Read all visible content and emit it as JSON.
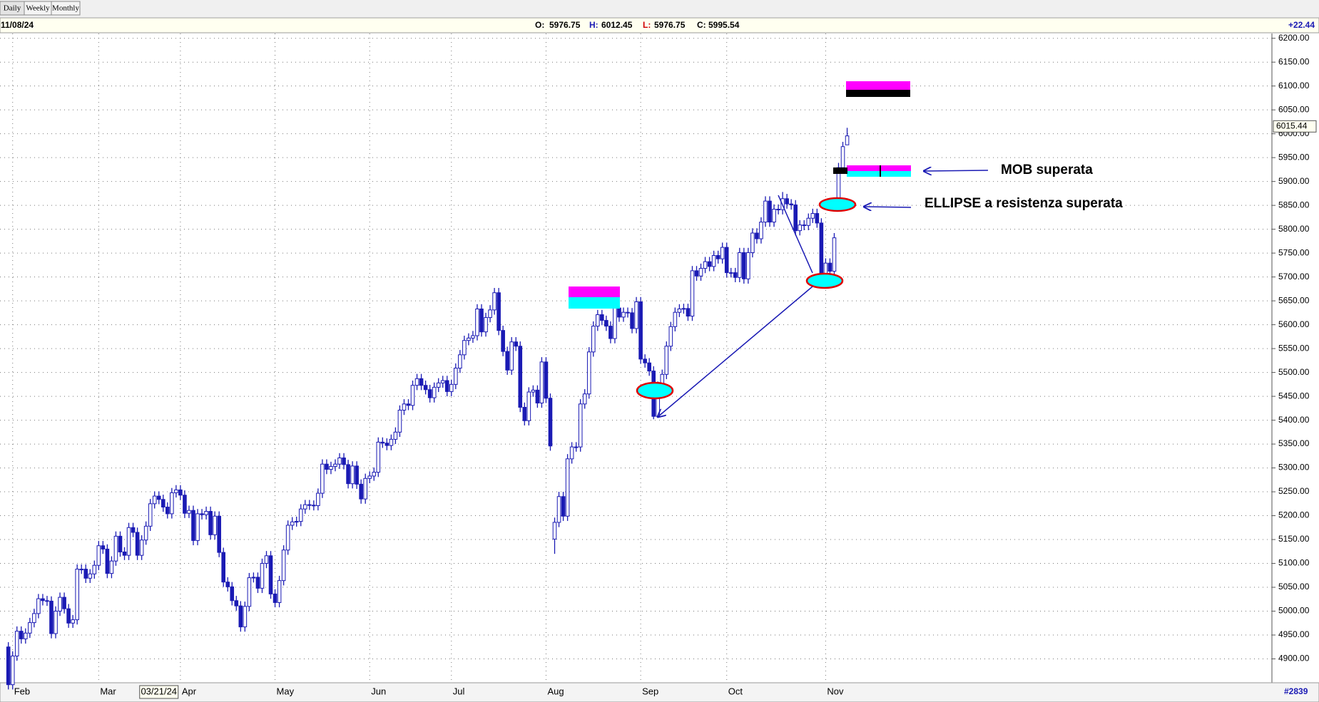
{
  "toolbar": {
    "buttons": [
      "Daily",
      "Weekly",
      "Monthly"
    ]
  },
  "header": {
    "date": "11/08/24",
    "ohlc_labels": [
      "O:",
      "H:",
      "L:",
      "C:"
    ],
    "change": "+22.44",
    "footer": "#2839"
  },
  "chart_data": {
    "type": "candlestick",
    "color": "#1a1ab4",
    "grid": true,
    "annotations": [
      "MOB superata",
      "ELLIPSE a resistenza superata"
    ],
    "cursor_price": 6015.44,
    "ylim": [
      4850,
      6210
    ],
    "yticks": [
      {
        "value": 4900,
        "label": "4900.00"
      },
      {
        "value": 4950,
        "label": "4950.00"
      },
      {
        "value": 5000,
        "label": "5000.00"
      },
      {
        "value": 5050,
        "label": "5050.00"
      },
      {
        "value": 5100,
        "label": "5100.00"
      },
      {
        "value": 5150,
        "label": "5150.00"
      },
      {
        "value": 5200,
        "label": "5200.00"
      },
      {
        "value": 5250,
        "label": "5250.00"
      },
      {
        "value": 5300,
        "label": "5300.00"
      },
      {
        "value": 5350,
        "label": "5350.00"
      },
      {
        "value": 5400,
        "label": "5400.00"
      },
      {
        "value": 5450,
        "label": "5450.00"
      },
      {
        "value": 5500,
        "label": "5500.00"
      },
      {
        "value": 5550,
        "label": "5550.00"
      },
      {
        "value": 5600,
        "label": "5600.00"
      },
      {
        "value": 5650,
        "label": "5650.00"
      },
      {
        "value": 5700,
        "label": "5700.00"
      },
      {
        "value": 5750,
        "label": "5750.00"
      },
      {
        "value": 5800,
        "label": "5800.00"
      },
      {
        "value": 5850,
        "label": "5850.00"
      },
      {
        "value": 5900,
        "label": "5900.00"
      },
      {
        "value": 5950,
        "label": "5950.00"
      },
      {
        "value": 6000,
        "label": "6000.00"
      },
      {
        "value": 6050,
        "label": "6050.00"
      },
      {
        "value": 6100,
        "label": "6100.00"
      },
      {
        "value": 6150,
        "label": "6150.00"
      },
      {
        "value": 6200,
        "label": "6200.00"
      }
    ],
    "categories": [
      null,
      "Feb",
      null,
      null,
      null,
      null,
      null,
      null,
      null,
      null,
      null,
      null,
      null,
      null,
      null,
      null,
      null,
      null,
      null,
      null,
      null,
      "Mar",
      null,
      null,
      null,
      null,
      null,
      null,
      null,
      null,
      null,
      null,
      null,
      null,
      null,
      "03/21/24",
      null,
      null,
      null,
      null,
      "Apr",
      null,
      null,
      null,
      null,
      null,
      null,
      null,
      null,
      null,
      null,
      null,
      null,
      null,
      null,
      null,
      null,
      null,
      null,
      null,
      null,
      null,
      "May",
      null,
      null,
      null,
      null,
      null,
      null,
      null,
      null,
      null,
      null,
      null,
      null,
      null,
      null,
      null,
      null,
      null,
      null,
      null,
      null,
      null,
      "Jun",
      null,
      null,
      null,
      null,
      null,
      null,
      null,
      null,
      null,
      null,
      null,
      null,
      null,
      null,
      null,
      null,
      null,
      null,
      "Jul",
      null,
      null,
      null,
      null,
      null,
      null,
      null,
      null,
      null,
      null,
      null,
      null,
      null,
      null,
      null,
      null,
      null,
      null,
      null,
      null,
      null,
      "Aug",
      null,
      null,
      null,
      null,
      null,
      null,
      null,
      null,
      null,
      null,
      null,
      null,
      null,
      null,
      null,
      null,
      null,
      null,
      null,
      null,
      null,
      "Sep",
      null,
      null,
      null,
      null,
      null,
      null,
      null,
      null,
      null,
      null,
      null,
      null,
      null,
      null,
      null,
      null,
      null,
      null,
      null,
      "Oct",
      null,
      null,
      null,
      null,
      null,
      null,
      null,
      null,
      null,
      null,
      null,
      null,
      null,
      null,
      null,
      null,
      null,
      null,
      null,
      null,
      null,
      null,
      "Nov",
      null,
      null,
      null,
      null,
      null
    ],
    "open": [
      4925,
      4846,
      4906,
      4958,
      4942,
      4954,
      4976,
      4995,
      5026,
      5022,
      5021,
      4953,
      5000,
      5029,
      5005,
      4975,
      4982,
      5088,
      5088,
      5069,
      5078,
      5096,
      5137,
      5130,
      5079,
      5105,
      5157,
      5124,
      5117,
      5175,
      5165,
      5117,
      5149,
      5178,
      5225,
      5241,
      5234,
      5218,
      5204,
      5248,
      5254,
      5243,
      5205,
      5211,
      5148,
      5204,
      5202,
      5209,
      5160,
      5199,
      5123,
      5061,
      5051,
      5022,
      5011,
      4967,
      5010,
      5070,
      5071,
      5048,
      5100,
      5116,
      5036,
      5018,
      5064,
      5128,
      5180,
      5187,
      5188,
      5214,
      5223,
      5222,
      5221,
      5247,
      5308,
      5297,
      5303,
      5308,
      5321,
      5307,
      5267,
      5304,
      5266,
      5235,
      5278,
      5283,
      5291,
      5354,
      5352,
      5347,
      5360,
      5375,
      5421,
      5434,
      5431,
      5473,
      5487,
      5473,
      5464,
      5447,
      5469,
      5478,
      5483,
      5460,
      5475,
      5509,
      5537,
      5567,
      5572,
      5577,
      5633,
      5585,
      5615,
      5631,
      5667,
      5588,
      5544,
      5505,
      5564,
      5555,
      5427,
      5399,
      5459,
      5463,
      5436,
      5522,
      5446,
      5151,
      5186,
      5240,
      5199,
      5319,
      5344,
      5344,
      5434,
      5455,
      5543,
      5597,
      5621,
      5609,
      5597,
      5571,
      5635,
      5616,
      5626,
      5625,
      5592,
      5648,
      5528,
      5520,
      5503,
      5408,
      5471,
      5496,
      5555,
      5596,
      5626,
      5633,
      5634,
      5618,
      5713,
      5702,
      5718,
      5732,
      5722,
      5745,
      5738,
      5762,
      5709,
      5709,
      5699,
      5751,
      5696,
      5751,
      5792,
      5780,
      5815,
      5859,
      5815,
      5842,
      5841,
      5864,
      5853,
      5851,
      5797,
      5809,
      5808,
      5823,
      5833,
      5813,
      5705,
      5729,
      5712,
      5864,
      5929,
      5976.75
    ],
    "high": [
      4935,
      4916,
      4968,
      4968,
      4964,
      4986,
      5005,
      5036,
      5036,
      5032,
      5031,
      5010,
      5039,
      5039,
      5015,
      4992,
      5098,
      5098,
      5098,
      5088,
      5106,
      5147,
      5147,
      5140,
      5115,
      5167,
      5167,
      5134,
      5185,
      5185,
      5175,
      5159,
      5188,
      5235,
      5251,
      5251,
      5244,
      5228,
      5258,
      5264,
      5264,
      5253,
      5221,
      5221,
      5214,
      5214,
      5219,
      5219,
      5209,
      5209,
      5133,
      5071,
      5061,
      5032,
      5021,
      5020,
      5080,
      5081,
      5081,
      5110,
      5126,
      5126,
      5046,
      5074,
      5138,
      5190,
      5197,
      5198,
      5224,
      5233,
      5233,
      5232,
      5257,
      5318,
      5318,
      5313,
      5318,
      5331,
      5331,
      5317,
      5314,
      5314,
      5276,
      5288,
      5293,
      5301,
      5364,
      5364,
      5362,
      5370,
      5385,
      5431,
      5444,
      5444,
      5483,
      5497,
      5497,
      5483,
      5474,
      5479,
      5488,
      5493,
      5493,
      5485,
      5519,
      5547,
      5577,
      5582,
      5587,
      5643,
      5643,
      5625,
      5641,
      5677,
      5677,
      5598,
      5554,
      5574,
      5574,
      5565,
      5437,
      5469,
      5473,
      5473,
      5532,
      5532,
      5456,
      5196,
      5250,
      5250,
      5329,
      5354,
      5354,
      5444,
      5465,
      5553,
      5607,
      5631,
      5631,
      5619,
      5607,
      5645,
      5645,
      5636,
      5636,
      5635,
      5658,
      5658,
      5538,
      5530,
      5513,
      5481,
      5506,
      5565,
      5606,
      5636,
      5643,
      5644,
      5644,
      5723,
      5723,
      5728,
      5742,
      5742,
      5755,
      5755,
      5772,
      5772,
      5719,
      5719,
      5761,
      5761,
      5761,
      5802,
      5802,
      5825,
      5869,
      5869,
      5852,
      5852,
      5878,
      5874,
      5863,
      5861,
      5819,
      5819,
      5833,
      5843,
      5843,
      5823,
      5739,
      5739,
      5792,
      5939,
      5983,
      6012.45
    ],
    "low": [
      4836,
      4836,
      4896,
      4932,
      4932,
      4944,
      4966,
      4985,
      5012,
      5011,
      4943,
      4943,
      4990,
      4995,
      4965,
      4965,
      4972,
      5078,
      5059,
      5059,
      5068,
      5086,
      5120,
      5069,
      5069,
      5095,
      5114,
      5107,
      5107,
      5155,
      5107,
      5107,
      5139,
      5168,
      5215,
      5224,
      5208,
      5194,
      5194,
      5238,
      5233,
      5195,
      5195,
      5138,
      5138,
      5192,
      5192,
      5150,
      5150,
      5113,
      5051,
      5041,
      5012,
      5001,
      4957,
      4957,
      5000,
      5060,
      5038,
      5038,
      5090,
      5026,
      5008,
      5008,
      5054,
      5118,
      5170,
      5177,
      5178,
      5204,
      5212,
      5211,
      5211,
      5237,
      5287,
      5287,
      5293,
      5298,
      5297,
      5257,
      5257,
      5256,
      5225,
      5225,
      5268,
      5273,
      5281,
      5342,
      5337,
      5337,
      5350,
      5365,
      5411,
      5421,
      5421,
      5463,
      5463,
      5454,
      5437,
      5437,
      5459,
      5468,
      5450,
      5450,
      5465,
      5499,
      5527,
      5557,
      5562,
      5567,
      5575,
      5575,
      5605,
      5621,
      5578,
      5534,
      5495,
      5495,
      5545,
      5417,
      5389,
      5389,
      5449,
      5426,
      5426,
      5436,
      5336,
      5120,
      5176,
      5189,
      5189,
      5309,
      5334,
      5334,
      5424,
      5445,
      5533,
      5587,
      5599,
      5587,
      5561,
      5561,
      5606,
      5606,
      5615,
      5582,
      5582,
      5518,
      5510,
      5493,
      5402,
      5405,
      5461,
      5486,
      5545,
      5586,
      5616,
      5623,
      5608,
      5608,
      5692,
      5692,
      5708,
      5712,
      5712,
      5728,
      5728,
      5699,
      5699,
      5689,
      5689,
      5686,
      5686,
      5741,
      5770,
      5770,
      5805,
      5805,
      5805,
      5831,
      5831,
      5843,
      5841,
      5787,
      5787,
      5798,
      5798,
      5813,
      5803,
      5695,
      5695,
      5702,
      5702,
      5854,
      5919,
      5976.75
    ],
    "close": [
      4846,
      4906,
      4958,
      4942,
      4954,
      4976,
      4995,
      5026,
      5022,
      5021,
      4953,
      5000,
      5029,
      5005,
      4975,
      4982,
      5088,
      5088,
      5069,
      5078,
      5096,
      5137,
      5130,
      5079,
      5105,
      5157,
      5124,
      5117,
      5175,
      5165,
      5117,
      5149,
      5178,
      5225,
      5241,
      5234,
      5218,
      5204,
      5248,
      5254,
      5243,
      5205,
      5211,
      5148,
      5204,
      5202,
      5209,
      5160,
      5199,
      5123,
      5061,
      5051,
      5022,
      5011,
      4967,
      5010,
      5070,
      5071,
      5048,
      5100,
      5116,
      5036,
      5018,
      5064,
      5128,
      5180,
      5187,
      5188,
      5214,
      5223,
      5222,
      5221,
      5247,
      5308,
      5297,
      5303,
      5308,
      5321,
      5307,
      5267,
      5304,
      5266,
      5235,
      5278,
      5283,
      5291,
      5354,
      5352,
      5347,
      5360,
      5375,
      5421,
      5434,
      5431,
      5473,
      5487,
      5473,
      5464,
      5447,
      5469,
      5478,
      5483,
      5460,
      5475,
      5509,
      5537,
      5567,
      5572,
      5577,
      5633,
      5585,
      5615,
      5631,
      5667,
      5588,
      5544,
      5505,
      5564,
      5555,
      5427,
      5399,
      5459,
      5463,
      5436,
      5522,
      5446,
      5346,
      5186,
      5240,
      5199,
      5319,
      5344,
      5344,
      5434,
      5455,
      5543,
      5597,
      5621,
      5609,
      5597,
      5571,
      5635,
      5616,
      5626,
      5625,
      5592,
      5648,
      5528,
      5520,
      5503,
      5408,
      5471,
      5496,
      5555,
      5596,
      5626,
      5633,
      5634,
      5618,
      5713,
      5702,
      5718,
      5732,
      5722,
      5745,
      5738,
      5762,
      5709,
      5709,
      5699,
      5751,
      5696,
      5751,
      5792,
      5780,
      5815,
      5859,
      5815,
      5842,
      5841,
      5864,
      5853,
      5851,
      5797,
      5809,
      5808,
      5823,
      5833,
      5813,
      5705,
      5729,
      5712,
      5782,
      5929,
      5973,
      5995.54
    ]
  }
}
